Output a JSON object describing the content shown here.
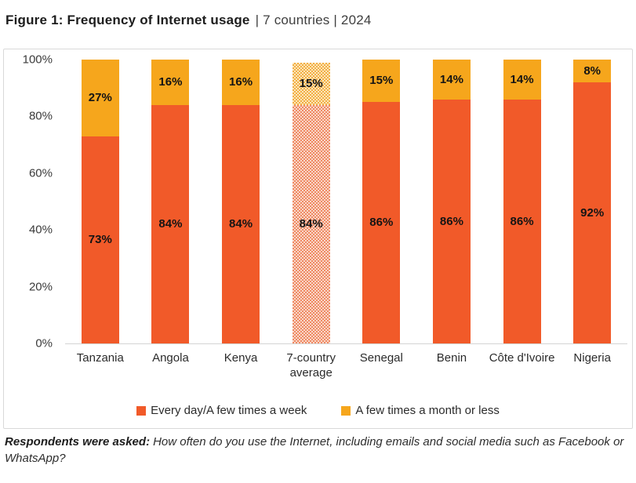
{
  "title": {
    "main": "Figure 1: Frequency of Internet usage",
    "suffix": "| 7 countries | 2024"
  },
  "chart_data": {
    "type": "bar",
    "stacked": true,
    "orientation": "vertical",
    "categories": [
      "Tanzania",
      "Angola",
      "Kenya",
      "7-country average",
      "Senegal",
      "Benin",
      "Côte d'Ivoire",
      "Nigeria"
    ],
    "series": [
      {
        "name": "Every day/A few times a week",
        "color": "#F15A29",
        "values": [
          73,
          84,
          84,
          84,
          86,
          86,
          86,
          92
        ]
      },
      {
        "name": "A few times a month or less",
        "color": "#F6A61C",
        "values": [
          27,
          16,
          16,
          15,
          15,
          14,
          14,
          8
        ]
      }
    ],
    "bar_label_format": "{value}%",
    "highlight_category": "7-country average",
    "highlight_style": "dotted-pattern-lighter",
    "ylim": [
      0,
      100
    ],
    "ytick_labels_top_to_bottom": [
      "100%",
      "80%",
      "60%",
      "40%",
      "20%",
      "0%"
    ],
    "grid": false,
    "legend_position": "bottom"
  },
  "footnote": {
    "lead": "Respondents were asked:",
    "text": "How often do you use the Internet, including emails and social media such as Facebook or WhatsApp?"
  }
}
